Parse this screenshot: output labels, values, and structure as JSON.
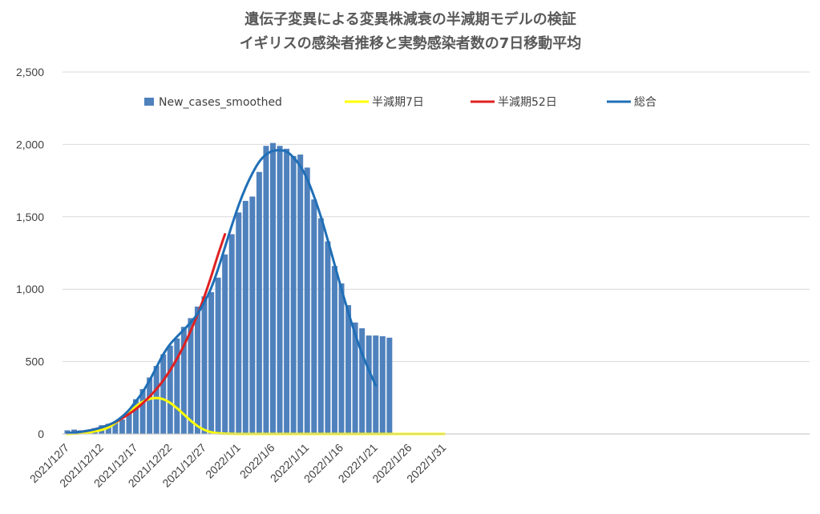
{
  "chart_data": {
    "type": "bar",
    "title": "遺伝子変異による変異株減衰の半減期モデルの検証",
    "subtitle": "イギリスの感染者推移と実勢感染者数の7日移動平均",
    "xlabel": "",
    "ylabel": "",
    "ylim": [
      0,
      2500
    ],
    "yticks": [
      0,
      500,
      1000,
      1500,
      2000,
      2500
    ],
    "ytick_labels": [
      "0",
      "500",
      "1,000",
      "1,500",
      "2,000",
      "2,500"
    ],
    "xtick_labels": [
      "2021/12/7",
      "2021/12/12",
      "2021/12/17",
      "2021/12/22",
      "2021/12/27",
      "2022/1/1",
      "2022/1/6",
      "2022/1/11",
      "2022/1/16",
      "2022/1/21",
      "2022/1/26",
      "2022/1/31"
    ],
    "grid": true,
    "legend_position": "top",
    "bar_series": {
      "name": "New_cases_smoothed",
      "color": "#4f81bd",
      "values": [
        25,
        30,
        25,
        28,
        40,
        60,
        70,
        80,
        100,
        160,
        240,
        310,
        390,
        470,
        550,
        610,
        660,
        740,
        800,
        880,
        950,
        980,
        1080,
        1240,
        1380,
        1530,
        1610,
        1640,
        1810,
        1990,
        2010,
        1990,
        1970,
        1920,
        1930,
        1840,
        1620,
        1490,
        1330,
        1160,
        1040,
        890,
        770,
        730,
        680,
        680,
        675,
        665
      ]
    },
    "line_series": [
      {
        "name": "半減期7日",
        "color": "#ffff00",
        "values": [
          0,
          2,
          5,
          10,
          18,
          28,
          45,
          75,
          110,
          150,
          190,
          222,
          242,
          248,
          240,
          215,
          178,
          135,
          92,
          55,
          28,
          12,
          5,
          2,
          1,
          0,
          0,
          0,
          0,
          0,
          0,
          0,
          0,
          0,
          0,
          0,
          0,
          0,
          0,
          0,
          0,
          0,
          0,
          0,
          0,
          0,
          0,
          0,
          0,
          0,
          0,
          0,
          0,
          0,
          0,
          0
        ]
      },
      {
        "name": "半減期52日",
        "color": "#e02020",
        "values": [
          5,
          10,
          15,
          22,
          32,
          45,
          62,
          82,
          108,
          138,
          172,
          212,
          258,
          310,
          370,
          440,
          520,
          610,
          712,
          825,
          950,
          1090,
          1240,
          1380
        ]
      },
      {
        "name": "総合",
        "color": "#1f6fb6",
        "values": [
          5,
          10,
          15,
          22,
          32,
          45,
          62,
          85,
          120,
          165,
          225,
          290,
          370,
          460,
          550,
          620,
          672,
          720,
          770,
          830,
          910,
          1010,
          1140,
          1290,
          1440,
          1580,
          1700,
          1800,
          1880,
          1930,
          1955,
          1960,
          1950,
          1910,
          1850,
          1760,
          1640,
          1500,
          1340,
          1170,
          1000,
          840,
          690,
          555,
          440,
          335
        ]
      }
    ]
  }
}
